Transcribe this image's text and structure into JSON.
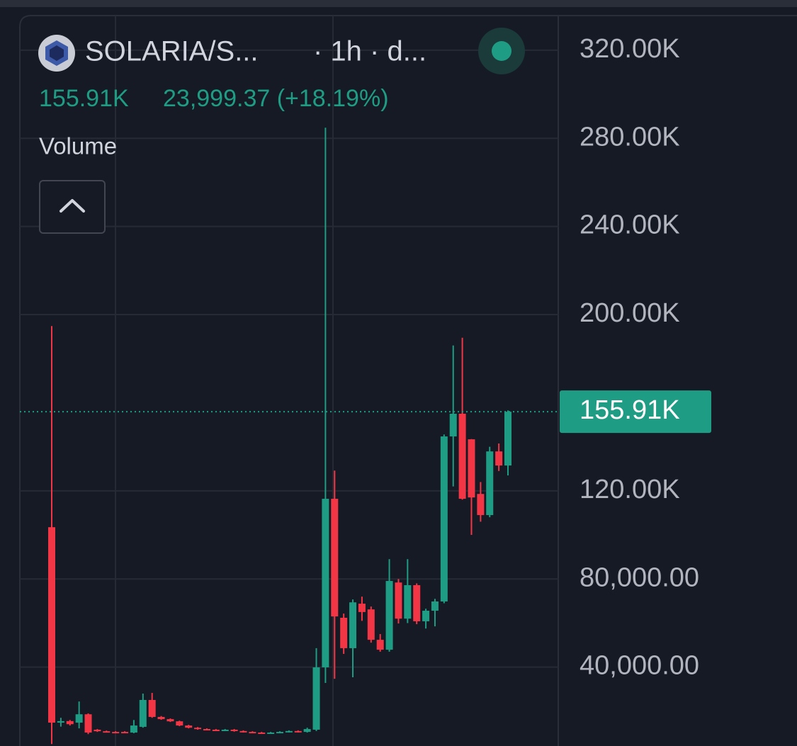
{
  "chart_data": {
    "type": "candlestick",
    "symbol": "SOLARIA/S...",
    "interval": "· 1h · d...",
    "change": "23,999.37 (+18.19%)",
    "indicator": "Volume",
    "up_color": "#1e9d84",
    "down_color": "#f23645",
    "grid": true,
    "ylim": [
      4200,
      335700
    ],
    "yticks": [
      {
        "value": 320000,
        "label": "320.00K"
      },
      {
        "value": 280000,
        "label": "280.00K"
      },
      {
        "value": 240000,
        "label": "240.00K"
      },
      {
        "value": 200000,
        "label": "200.00K"
      },
      {
        "value": 120000,
        "label": "120.00K"
      },
      {
        "value": 80000,
        "label": "80,000.00"
      },
      {
        "value": 40000,
        "label": "40,000.00"
      }
    ],
    "last_price": {
      "value": 155910,
      "label": "155.91K"
    },
    "open": [
      103500,
      14800,
      15500,
      14800,
      18600,
      11600,
      10900,
      10600,
      10600,
      10300,
      12900,
      25100,
      17400,
      16400,
      15400,
      13500,
      12500,
      11900,
      11600,
      11300,
      11600,
      11000,
      10600,
      10300,
      10000,
      10300,
      10600,
      11000,
      10600,
      11600,
      39900,
      116400,
      62400,
      48600,
      68800,
      66200,
      52400,
      47900,
      78400,
      62000,
      77200,
      60800,
      65600,
      69800,
      144700,
      155000,
      143400,
      118600,
      109000,
      137900,
      131500
    ],
    "high": [
      194800,
      17000,
      16000,
      24400,
      19000,
      11900,
      11200,
      10900,
      10900,
      16000,
      28000,
      28300,
      17800,
      16700,
      15700,
      13800,
      12800,
      12200,
      11900,
      11900,
      11900,
      11300,
      10900,
      10600,
      10600,
      10900,
      11300,
      11300,
      12500,
      48600,
      284800,
      129200,
      64300,
      70700,
      72000,
      67500,
      55000,
      89000,
      80000,
      89000,
      78000,
      66500,
      71000,
      145600,
      186000,
      189500,
      143500,
      124000,
      140000,
      141500,
      156500
    ],
    "low": [
      5100,
      13000,
      13500,
      12200,
      9600,
      10600,
      10300,
      10000,
      10000,
      10000,
      12500,
      17000,
      16100,
      15100,
      13200,
      12200,
      11600,
      11300,
      11000,
      11000,
      10700,
      10300,
      10000,
      9700,
      9700,
      10000,
      10300,
      10300,
      10300,
      11000,
      32800,
      34700,
      46000,
      35400,
      61000,
      51100,
      47000,
      47000,
      59800,
      60000,
      59500,
      57500,
      58500,
      69000,
      122000,
      116000,
      100000,
      106000,
      108000,
      129000,
      127000
    ],
    "close": [
      14800,
      15500,
      14100,
      18600,
      10300,
      10900,
      10600,
      10300,
      10300,
      13500,
      25100,
      17400,
      16400,
      15400,
      13500,
      12500,
      11900,
      11600,
      11300,
      11600,
      11000,
      10600,
      10300,
      10000,
      10300,
      10600,
      11000,
      10600,
      11900,
      39900,
      116400,
      63000,
      48600,
      69400,
      65000,
      52400,
      47900,
      79100,
      62000,
      77200,
      60800,
      65600,
      69800,
      144700,
      155000,
      116400,
      117000,
      109000,
      137900,
      131500,
      155910
    ]
  }
}
